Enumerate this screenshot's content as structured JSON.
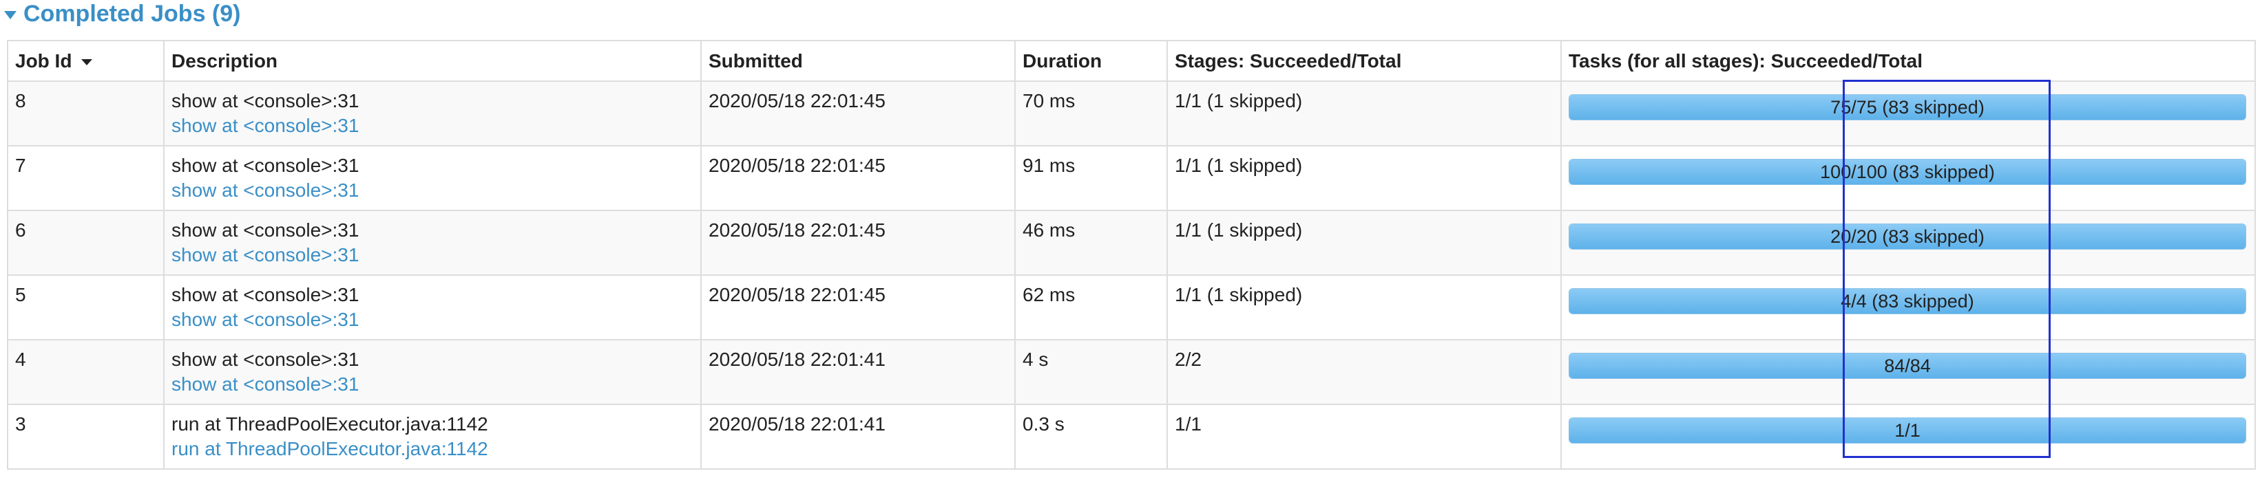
{
  "section": {
    "title": "Completed Jobs (9)"
  },
  "table": {
    "headers": {
      "job_id": "Job Id",
      "description": "Description",
      "submitted": "Submitted",
      "duration": "Duration",
      "stages": "Stages: Succeeded/Total",
      "tasks": "Tasks (for all stages): Succeeded/Total"
    },
    "sorted_by": "Job Id",
    "sort_direction": "descending",
    "rows": [
      {
        "job_id": "8",
        "description": "show at <console>:31",
        "link": "show at <console>:31",
        "submitted": "2020/05/18 22:01:45",
        "duration": "70 ms",
        "stages": "1/1 (1 skipped)",
        "tasks": "75/75 (83 skipped)",
        "progress": 1.0
      },
      {
        "job_id": "7",
        "description": "show at <console>:31",
        "link": "show at <console>:31",
        "submitted": "2020/05/18 22:01:45",
        "duration": "91 ms",
        "stages": "1/1 (1 skipped)",
        "tasks": "100/100 (83 skipped)",
        "progress": 1.0
      },
      {
        "job_id": "6",
        "description": "show at <console>:31",
        "link": "show at <console>:31",
        "submitted": "2020/05/18 22:01:45",
        "duration": "46 ms",
        "stages": "1/1 (1 skipped)",
        "tasks": "20/20 (83 skipped)",
        "progress": 1.0
      },
      {
        "job_id": "5",
        "description": "show at <console>:31",
        "link": "show at <console>:31",
        "submitted": "2020/05/18 22:01:45",
        "duration": "62 ms",
        "stages": "1/1 (1 skipped)",
        "tasks": "4/4 (83 skipped)",
        "progress": 1.0
      },
      {
        "job_id": "4",
        "description": "show at <console>:31",
        "link": "show at <console>:31",
        "submitted": "2020/05/18 22:01:41",
        "duration": "4 s",
        "stages": "2/2",
        "tasks": "84/84",
        "progress": 1.0
      },
      {
        "job_id": "3",
        "description": "run at ThreadPoolExecutor.java:1142",
        "link": "run at ThreadPoolExecutor.java:1142",
        "submitted": "2020/05/18 22:01:41",
        "duration": "0.3 s",
        "stages": "1/1",
        "tasks": "1/1",
        "progress": 1.0
      }
    ]
  },
  "colors": {
    "link": "#3a8fc7",
    "progress_fill": "#5eb2ea",
    "highlight_box": "#2030d0"
  }
}
